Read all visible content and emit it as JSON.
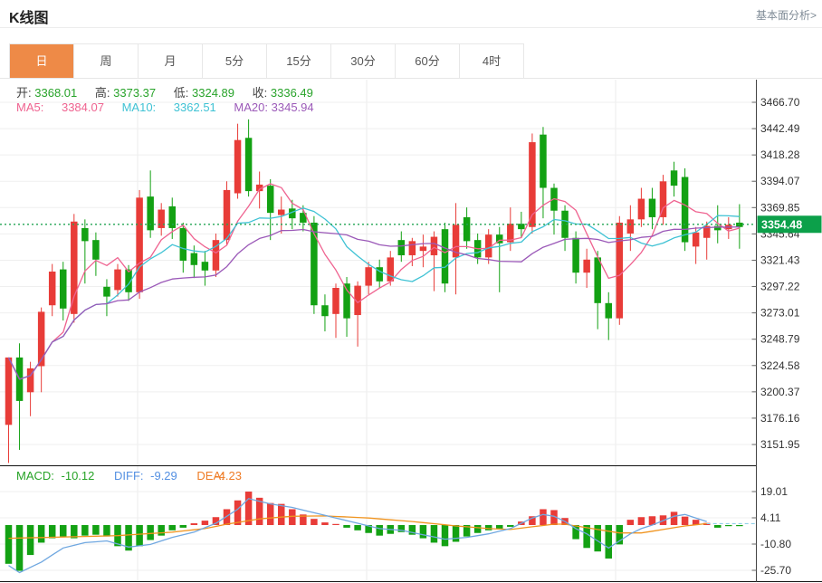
{
  "header": {
    "title": "K线图",
    "link": "基本面分析>"
  },
  "tabs": {
    "items": [
      {
        "label": "日",
        "selected": true
      },
      {
        "label": "周"
      },
      {
        "label": "月"
      },
      {
        "label": "5分"
      },
      {
        "label": "15分"
      },
      {
        "label": "30分"
      },
      {
        "label": "60分"
      },
      {
        "label": "4时"
      }
    ]
  },
  "quote": {
    "open_label": "开:",
    "open": "3368.01",
    "high_label": "高:",
    "high": "3373.37",
    "low_label": "低:",
    "low": "3324.89",
    "close_label": "收:",
    "close": "3336.49"
  },
  "ma": {
    "ma5_label": "MA5:",
    "ma5": "3384.07",
    "ma10_label": "MA10:",
    "ma10": "3362.51",
    "ma20_label": "MA20:",
    "ma20": "3345.94"
  },
  "macd_info": {
    "macd_label": "MACD:",
    "macd": "-10.12",
    "diff_label": "DIFF:",
    "diff": "-9.29",
    "dea_label": "DEA:",
    "dea": "-4.23"
  },
  "chart_data": {
    "type": "candlestick+macd",
    "title": "K线图 daily candlestick with MA5/MA10/MA20 and MACD",
    "price_axis_ticks": [
      "3466.70",
      "3442.49",
      "3418.28",
      "3394.07",
      "3369.85",
      "3345.64",
      "3321.43",
      "3297.22",
      "3273.01",
      "3248.79",
      "3224.58",
      "3200.37",
      "3176.16",
      "3151.95"
    ],
    "macd_axis_ticks": [
      "19.01",
      "4.11",
      "-10.80",
      "-25.70"
    ],
    "current_price": "3354.48",
    "legend": [
      "MA5",
      "MA10",
      "MA20",
      "MACD",
      "DIFF",
      "DEA"
    ],
    "candles_ohlc": [
      [
        3170,
        3232,
        3135,
        3232
      ],
      [
        3232,
        3245,
        3147,
        3192
      ],
      [
        3200,
        3228,
        3178,
        3222
      ],
      [
        3224,
        3278,
        3200,
        3274
      ],
      [
        3280,
        3318,
        3270,
        3311
      ],
      [
        3313,
        3320,
        3266,
        3277
      ],
      [
        3272,
        3364,
        3264,
        3357
      ],
      [
        3351,
        3359,
        3300,
        3339
      ],
      [
        3340,
        3347,
        3307,
        3322
      ],
      [
        3297,
        3304,
        3270,
        3288
      ],
      [
        3294,
        3318,
        3288,
        3313
      ],
      [
        3313,
        3317,
        3284,
        3292
      ],
      [
        3292,
        3386,
        3286,
        3379
      ],
      [
        3380,
        3404,
        3342,
        3349
      ],
      [
        3351,
        3374,
        3344,
        3368
      ],
      [
        3371,
        3379,
        3341,
        3351
      ],
      [
        3351,
        3356,
        3310,
        3321
      ],
      [
        3328,
        3335,
        3305,
        3317
      ],
      [
        3320,
        3330,
        3298,
        3312
      ],
      [
        3312,
        3346,
        3306,
        3340
      ],
      [
        3340,
        3394,
        3335,
        3386
      ],
      [
        3383,
        3447,
        3378,
        3432
      ],
      [
        3434,
        3451,
        3380,
        3385
      ],
      [
        3385,
        3403,
        3369,
        3391
      ],
      [
        3390,
        3396,
        3340,
        3365
      ],
      [
        3363,
        3380,
        3346,
        3368
      ],
      [
        3369,
        3377,
        3350,
        3360
      ],
      [
        3365,
        3372,
        3348,
        3356
      ],
      [
        3356,
        3362,
        3272,
        3280
      ],
      [
        3280,
        3290,
        3256,
        3270
      ],
      [
        3272,
        3300,
        3250,
        3296
      ],
      [
        3300,
        3306,
        3251,
        3268
      ],
      [
        3271,
        3302,
        3242,
        3298
      ],
      [
        3298,
        3320,
        3290,
        3315
      ],
      [
        3315,
        3322,
        3296,
        3302
      ],
      [
        3302,
        3330,
        3298,
        3324
      ],
      [
        3340,
        3348,
        3320,
        3326
      ],
      [
        3326,
        3342,
        3316,
        3339
      ],
      [
        3330,
        3345,
        3315,
        3334
      ],
      [
        3326,
        3348,
        3293,
        3343
      ],
      [
        3350,
        3356,
        3292,
        3300
      ],
      [
        3324,
        3374,
        3290,
        3354
      ],
      [
        3361,
        3370,
        3332,
        3339
      ],
      [
        3340,
        3346,
        3318,
        3324
      ],
      [
        3324,
        3350,
        3318,
        3345
      ],
      [
        3345,
        3352,
        3292,
        3337
      ],
      [
        3338,
        3370,
        3330,
        3355
      ],
      [
        3355,
        3366,
        3342,
        3350
      ],
      [
        3352,
        3438,
        3346,
        3430
      ],
      [
        3437,
        3444,
        3360,
        3388
      ],
      [
        3388,
        3392,
        3345,
        3367
      ],
      [
        3367,
        3372,
        3330,
        3342
      ],
      [
        3342,
        3348,
        3300,
        3310
      ],
      [
        3310,
        3332,
        3296,
        3322
      ],
      [
        3324,
        3330,
        3258,
        3282
      ],
      [
        3282,
        3292,
        3248,
        3268
      ],
      [
        3268,
        3362,
        3262,
        3356
      ],
      [
        3346,
        3372,
        3330,
        3359
      ],
      [
        3359,
        3388,
        3352,
        3378
      ],
      [
        3378,
        3388,
        3350,
        3361
      ],
      [
        3361,
        3400,
        3354,
        3394
      ],
      [
        3404,
        3412,
        3380,
        3390
      ],
      [
        3398,
        3406,
        3330,
        3338
      ],
      [
        3334,
        3352,
        3318,
        3347
      ],
      [
        3342,
        3357,
        3322,
        3353
      ],
      [
        3353,
        3372,
        3337,
        3349
      ],
      [
        3350,
        3361,
        3341,
        3354
      ],
      [
        3356,
        3373,
        3332,
        3352
      ]
    ],
    "macd_histogram": [
      -22,
      -26,
      -17,
      -10,
      -7.5,
      -6.5,
      -7.5,
      -6,
      -5.5,
      -6.5,
      -12,
      -14.5,
      -12,
      -8.5,
      -6,
      -3,
      -1.5,
      1,
      2.5,
      4.5,
      9,
      14,
      19,
      15.5,
      12.5,
      12,
      9,
      6,
      3.5,
      1.5,
      0.6,
      -1.5,
      -3,
      -4.5,
      -6,
      -5,
      -4,
      -5.5,
      -7.5,
      -10,
      -12,
      -9.5,
      -6.5,
      -4.5,
      -3,
      -2,
      -1,
      2,
      5,
      9,
      8.5,
      4,
      -8,
      -13,
      -15,
      -19,
      -11,
      3,
      4.5,
      5,
      5.5,
      7.5,
      4.8,
      3,
      1.2,
      -1.5,
      -0.6,
      -0.3
    ],
    "diff_keyframes": [
      [
        0,
        -23
      ],
      [
        1,
        -27
      ],
      [
        3,
        -21
      ],
      [
        5,
        -13
      ],
      [
        7,
        -10
      ],
      [
        9,
        -9
      ],
      [
        11,
        -12.5
      ],
      [
        13,
        -11
      ],
      [
        15,
        -7
      ],
      [
        17,
        -4
      ],
      [
        19,
        1
      ],
      [
        21,
        9
      ],
      [
        22,
        15
      ],
      [
        24,
        12
      ],
      [
        26,
        10
      ],
      [
        28,
        7
      ],
      [
        30,
        4
      ],
      [
        32,
        1
      ],
      [
        34,
        -2
      ],
      [
        36,
        -3
      ],
      [
        38,
        -5.5
      ],
      [
        40,
        -8
      ],
      [
        42,
        -7
      ],
      [
        44,
        -5
      ],
      [
        46,
        -2
      ],
      [
        47,
        1
      ],
      [
        48,
        4
      ],
      [
        49,
        6
      ],
      [
        50,
        5
      ],
      [
        51,
        2
      ],
      [
        52,
        -2
      ],
      [
        53,
        -5
      ],
      [
        55,
        -13
      ],
      [
        56,
        -9
      ],
      [
        57,
        -5
      ],
      [
        58,
        -2
      ],
      [
        59,
        0
      ],
      [
        60,
        2.5
      ],
      [
        61,
        5
      ],
      [
        62,
        6
      ],
      [
        63,
        4
      ],
      [
        64,
        2
      ]
    ],
    "dea_keyframes": [
      [
        0,
        -7.5
      ],
      [
        5,
        -6.8
      ],
      [
        10,
        -6
      ],
      [
        15,
        -4
      ],
      [
        18,
        -2
      ],
      [
        20,
        0.5
      ],
      [
        23,
        3.5
      ],
      [
        26,
        5
      ],
      [
        29,
        5.2
      ],
      [
        33,
        4
      ],
      [
        37,
        2
      ],
      [
        41,
        -0.5
      ],
      [
        44,
        -2
      ],
      [
        46,
        -2.5
      ],
      [
        48,
        -1
      ],
      [
        50,
        0.5
      ],
      [
        51,
        0.5
      ],
      [
        52,
        -0.5
      ],
      [
        54,
        -2.5
      ],
      [
        55,
        -3.5
      ],
      [
        56,
        -4.5
      ],
      [
        58,
        -4.5
      ],
      [
        60,
        -2.5
      ],
      [
        62,
        -0.5
      ],
      [
        64,
        0.8
      ]
    ],
    "vertical_gridlines_x": [
      152,
      405,
      680
    ],
    "colors": {
      "candle_up": "#e83c38",
      "candle_down": "#13a113",
      "ma5": "#ef6390",
      "ma10": "#3fc2d4",
      "ma20": "#9b59b8",
      "diff_line": "#6fa7e0",
      "dea_line": "#f0941f",
      "price_line": "#21a453",
      "badge_bg": "#0ca04a",
      "grid": "#efefef",
      "axis": "#333333",
      "tab_selected_bg": "#ee8a47"
    }
  }
}
